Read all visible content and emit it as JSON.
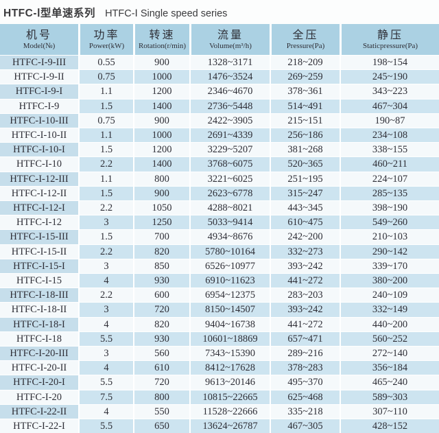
{
  "title": {
    "zh": "HTFC-Ⅰ型单速系列",
    "en": "HTFC-Ⅰ Single speed series"
  },
  "table": {
    "columns": [
      {
        "zh": "机号",
        "en": "Model(№)"
      },
      {
        "zh": "功率",
        "en": "Power(kW)"
      },
      {
        "zh": "转速",
        "en": "Rotation(r/min)"
      },
      {
        "zh": "流量",
        "en": "Volume(m³/h)"
      },
      {
        "zh": "全压",
        "en": "Pressure(Pa)"
      },
      {
        "zh": "静压",
        "en": "Staticpressure(Pa)"
      }
    ],
    "rows": [
      [
        "HTFC-I-9-III",
        "0.55",
        "900",
        "1328~3171",
        "218~209",
        "198~154"
      ],
      [
        "HTFC-I-9-II",
        "0.75",
        "1000",
        "1476~3524",
        "269~259",
        "245~190"
      ],
      [
        "HTFC-I-9-I",
        "1.1",
        "1200",
        "2346~4670",
        "378~361",
        "343~223"
      ],
      [
        "HTFC-I-9",
        "1.5",
        "1400",
        "2736~5448",
        "514~491",
        "467~304"
      ],
      [
        "HTFC-I-10-III",
        "0.75",
        "900",
        "2422~3905",
        "215~151",
        "190~87"
      ],
      [
        "HTFC-I-10-II",
        "1.1",
        "1000",
        "2691~4339",
        "256~186",
        "234~108"
      ],
      [
        "HTFC-I-10-I",
        "1.5",
        "1200",
        "3229~5207",
        "381~268",
        "338~155"
      ],
      [
        "HTFC-I-10",
        "2.2",
        "1400",
        "3768~6075",
        "520~365",
        "460~211"
      ],
      [
        "HTFC-I-12-III",
        "1.1",
        "800",
        "3221~6025",
        "251~195",
        "224~107"
      ],
      [
        "HTFC-I-12-II",
        "1.5",
        "900",
        "2623~6778",
        "315~247",
        "285~135"
      ],
      [
        "HTFC-I-12-I",
        "2.2",
        "1050",
        "4288~8021",
        "443~345",
        "398~190"
      ],
      [
        "HTFC-I-12",
        "3",
        "1250",
        "5033~9414",
        "610~475",
        "549~260"
      ],
      [
        "HTFC-I-15-III",
        "1.5",
        "700",
        "4934~8676",
        "242~200",
        "210~103"
      ],
      [
        "HTFC-I-15-II",
        "2.2",
        "820",
        "5780~10164",
        "332~273",
        "290~142"
      ],
      [
        "HTFC-I-15-I",
        "3",
        "850",
        "6526~10977",
        "393~242",
        "339~170"
      ],
      [
        "HTFC-I-15",
        "4",
        "930",
        "6910~11623",
        "441~272",
        "380~200"
      ],
      [
        "HTFC-I-18-III",
        "2.2",
        "600",
        "6954~12375",
        "283~203",
        "240~109"
      ],
      [
        "HTFC-I-18-II",
        "3",
        "720",
        "8150~14507",
        "393~242",
        "332~149"
      ],
      [
        "HTFC-I-18-I",
        "4",
        "820",
        "9404~16738",
        "441~272",
        "440~200"
      ],
      [
        "HTFC-I-18",
        "5.5",
        "930",
        "10601~18869",
        "657~471",
        "560~252"
      ],
      [
        "HTFC-I-20-III",
        "3",
        "560",
        "7343~15390",
        "289~216",
        "272~140"
      ],
      [
        "HTFC-I-20-II",
        "4",
        "610",
        "8412~17628",
        "378~283",
        "356~184"
      ],
      [
        "HTFC-I-20-I",
        "5.5",
        "720",
        "9613~20146",
        "495~370",
        "465~240"
      ],
      [
        "HTFC-I-20",
        "7.5",
        "800",
        "10815~22665",
        "625~468",
        "589~303"
      ],
      [
        "HTFC-I-22-II",
        "4",
        "550",
        "11528~22666",
        "335~218",
        "307~110"
      ],
      [
        "HTFC-I-22-I",
        "5.5",
        "650",
        "13624~26787",
        "467~305",
        "428~152"
      ]
    ]
  },
  "colors": {
    "header_bg": "#abd1e3",
    "row_white": "#f5f9fb",
    "row_blue": "#cde4f0",
    "model_blue": "#c6deeb",
    "text": "#2e2e36",
    "title_text": "#3a3a3c",
    "page_bg": "#fcfdfd"
  }
}
